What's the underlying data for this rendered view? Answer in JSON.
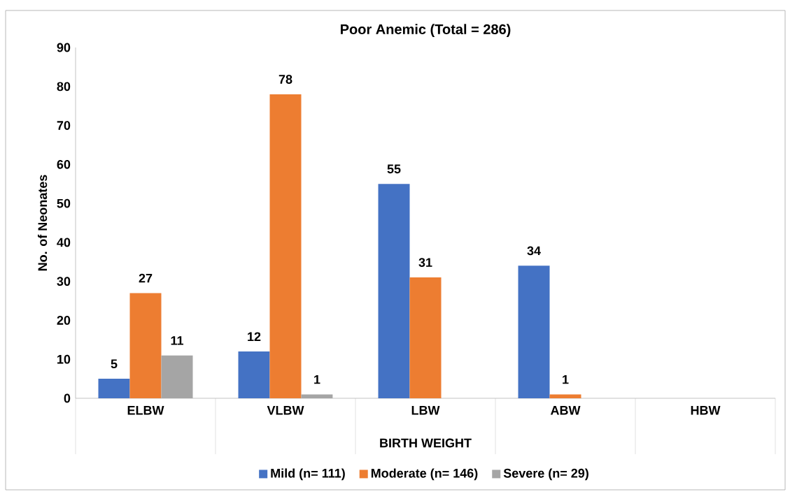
{
  "chart_data": {
    "type": "bar",
    "title": "Poor Anemic (Total = 286)",
    "xlabel": "BIRTH WEIGHT",
    "ylabel": "No. of Neonates",
    "categories": [
      "ELBW",
      "VLBW",
      "LBW",
      "ABW",
      "HBW"
    ],
    "series": [
      {
        "name": "Mild (n= 111)",
        "color": "#4472c4",
        "values": [
          5,
          12,
          55,
          34,
          null
        ]
      },
      {
        "name": "Moderate (n= 146)",
        "color": "#ed7d31",
        "values": [
          27,
          78,
          31,
          1,
          null
        ]
      },
      {
        "name": "Severe (n= 29)",
        "color": "#a5a5a5",
        "values": [
          11,
          1,
          null,
          null,
          null
        ]
      }
    ],
    "ylim": [
      0,
      90
    ],
    "yticks": [
      0,
      10,
      20,
      30,
      40,
      50,
      60,
      70,
      80,
      90
    ],
    "data_labels": true,
    "legend": "bottom",
    "grid": false
  }
}
